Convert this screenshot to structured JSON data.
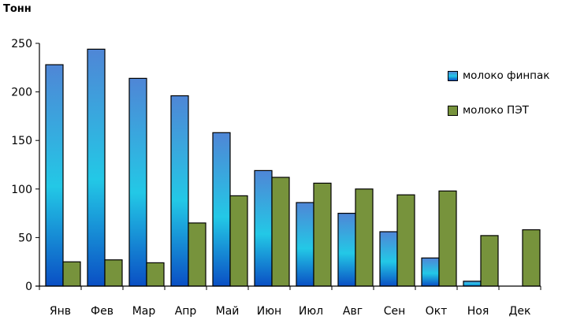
{
  "chart_data": {
    "type": "bar",
    "ylabel": "Тонн",
    "categories": [
      "Янв",
      "Фев",
      "Мар",
      "Апр",
      "Май",
      "Июн",
      "Июл",
      "Авг",
      "Сен",
      "Окт",
      "Ноя",
      "Дек"
    ],
    "series": [
      {
        "name": "молоко финпак",
        "values": [
          228,
          244,
          214,
          196,
          158,
          119,
          86,
          75,
          56,
          29,
          5,
          null
        ],
        "color": "#1e73d8"
      },
      {
        "name": "молоко ПЭТ",
        "values": [
          25,
          27,
          24,
          65,
          93,
          112,
          106,
          100,
          94,
          98,
          52,
          58
        ],
        "color": "#77933c"
      }
    ],
    "ylim": [
      0,
      250
    ],
    "yticks": [
      0,
      50,
      100,
      150,
      200,
      250
    ],
    "grid": false,
    "legend_position": "right"
  }
}
